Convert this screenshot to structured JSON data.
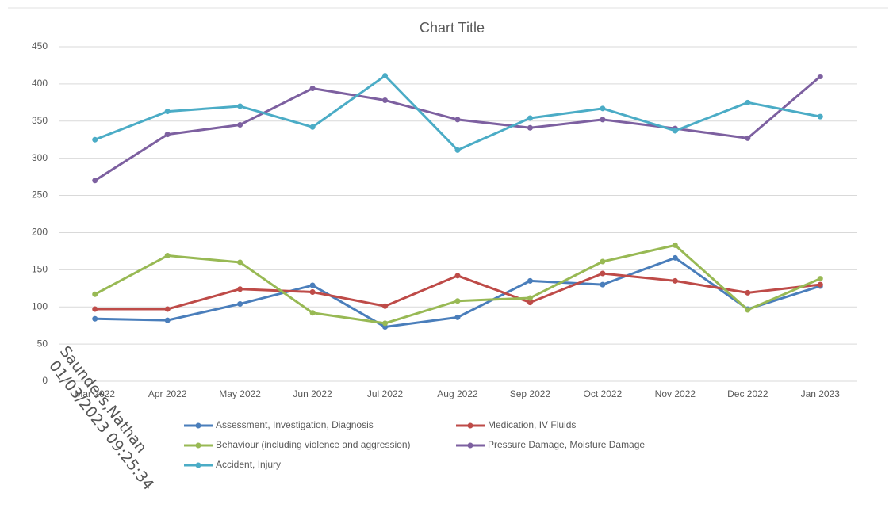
{
  "chart_data": {
    "type": "line",
    "title": "Chart Title",
    "categories": [
      "Mar 2022",
      "Apr 2022",
      "May 2022",
      "Jun 2022",
      "Jul 2022",
      "Aug 2022",
      "Sep 2022",
      "Oct 2022",
      "Nov 2022",
      "Dec 2022",
      "Jan 2023"
    ],
    "series": [
      {
        "name": "Assessment, Investigation, Diagnosis",
        "color": "#4a7ebb",
        "values": [
          84,
          82,
          104,
          129,
          73,
          86,
          135,
          130,
          166,
          97,
          128
        ]
      },
      {
        "name": "Medication, IV Fluids",
        "color": "#be4b48",
        "values": [
          97,
          97,
          124,
          120,
          101,
          142,
          106,
          145,
          135,
          119,
          130
        ]
      },
      {
        "name": "Behaviour (including violence and aggression)",
        "color": "#98b954",
        "values": [
          117,
          169,
          160,
          92,
          78,
          108,
          112,
          161,
          183,
          96,
          138
        ]
      },
      {
        "name": "Pressure Damage, Moisture Damage",
        "color": "#7d60a0",
        "values": [
          270,
          332,
          345,
          394,
          378,
          352,
          341,
          352,
          340,
          327,
          410
        ]
      },
      {
        "name": "Accident, Injury",
        "color": "#4bacc6",
        "values": [
          325,
          363,
          370,
          342,
          411,
          311,
          354,
          367,
          337,
          375,
          356
        ]
      }
    ],
    "ylim": [
      0,
      450
    ],
    "yticks": [
      0,
      50,
      100,
      150,
      200,
      250,
      300,
      350,
      400,
      450
    ],
    "grid": true,
    "legend": "bottom",
    "watermark": [
      "Saunders,Nathan",
      "01/03/2023 09:25:34"
    ]
  }
}
